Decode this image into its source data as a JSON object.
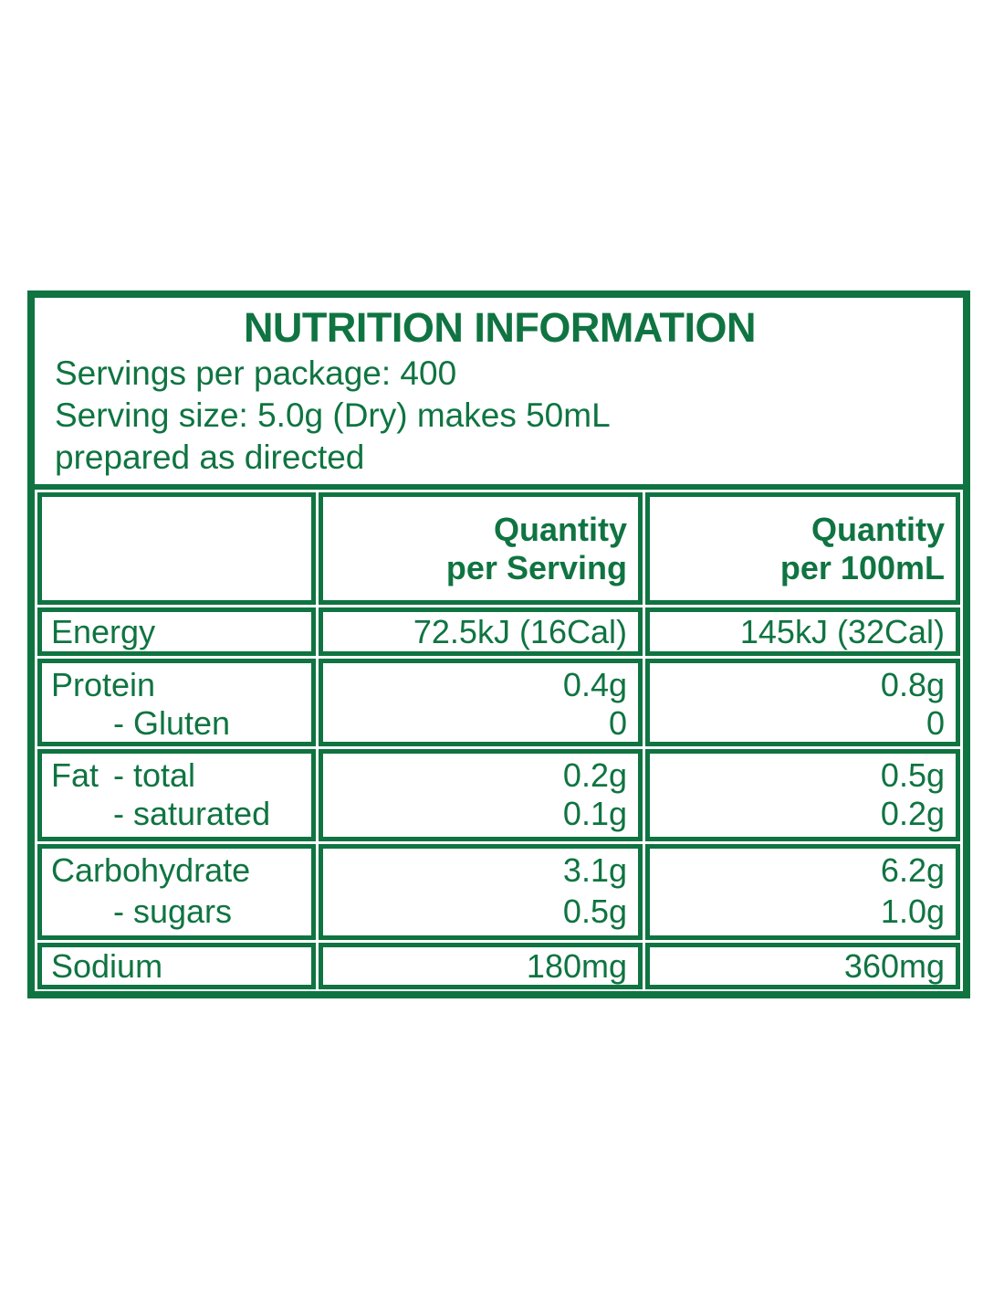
{
  "label": {
    "accent_color": "#0F7441",
    "title": "NUTRITION INFORMATION",
    "serving_info": [
      "Servings per package: 400",
      "Serving size: 5.0g (Dry) makes 50mL",
      "prepared as directed"
    ],
    "columns": {
      "per_serving_l1": "Quantity",
      "per_serving_l2": "per Serving",
      "per_100ml_l1": "Quantity",
      "per_100ml_l2": "per 100mL"
    },
    "rows": [
      {
        "lines": [
          {
            "main": "Energy",
            "sub": "",
            "per_serving": "72.5kJ (16Cal)",
            "per_100ml": "145kJ (32Cal)"
          }
        ]
      },
      {
        "lines": [
          {
            "main": "Protein",
            "sub": "",
            "per_serving": "0.4g",
            "per_100ml": "0.8g"
          },
          {
            "main": "",
            "sub": "- Gluten",
            "per_serving": "0",
            "per_100ml": "0"
          }
        ]
      },
      {
        "lines": [
          {
            "main": "Fat",
            "sub": "- total",
            "per_serving": "0.2g",
            "per_100ml": "0.5g"
          },
          {
            "main": "",
            "sub": "- saturated",
            "per_serving": "0.1g",
            "per_100ml": "0.2g"
          }
        ]
      },
      {
        "lines": [
          {
            "main": "Carbohydrate",
            "sub": "",
            "per_serving": "3.1g",
            "per_100ml": "6.2g"
          },
          {
            "main": "",
            "sub": "- sugars",
            "per_serving": "0.5g",
            "per_100ml": "1.0g"
          }
        ]
      },
      {
        "lines": [
          {
            "main": "Sodium",
            "sub": "",
            "per_serving": "180mg",
            "per_100ml": "360mg"
          }
        ]
      }
    ]
  }
}
